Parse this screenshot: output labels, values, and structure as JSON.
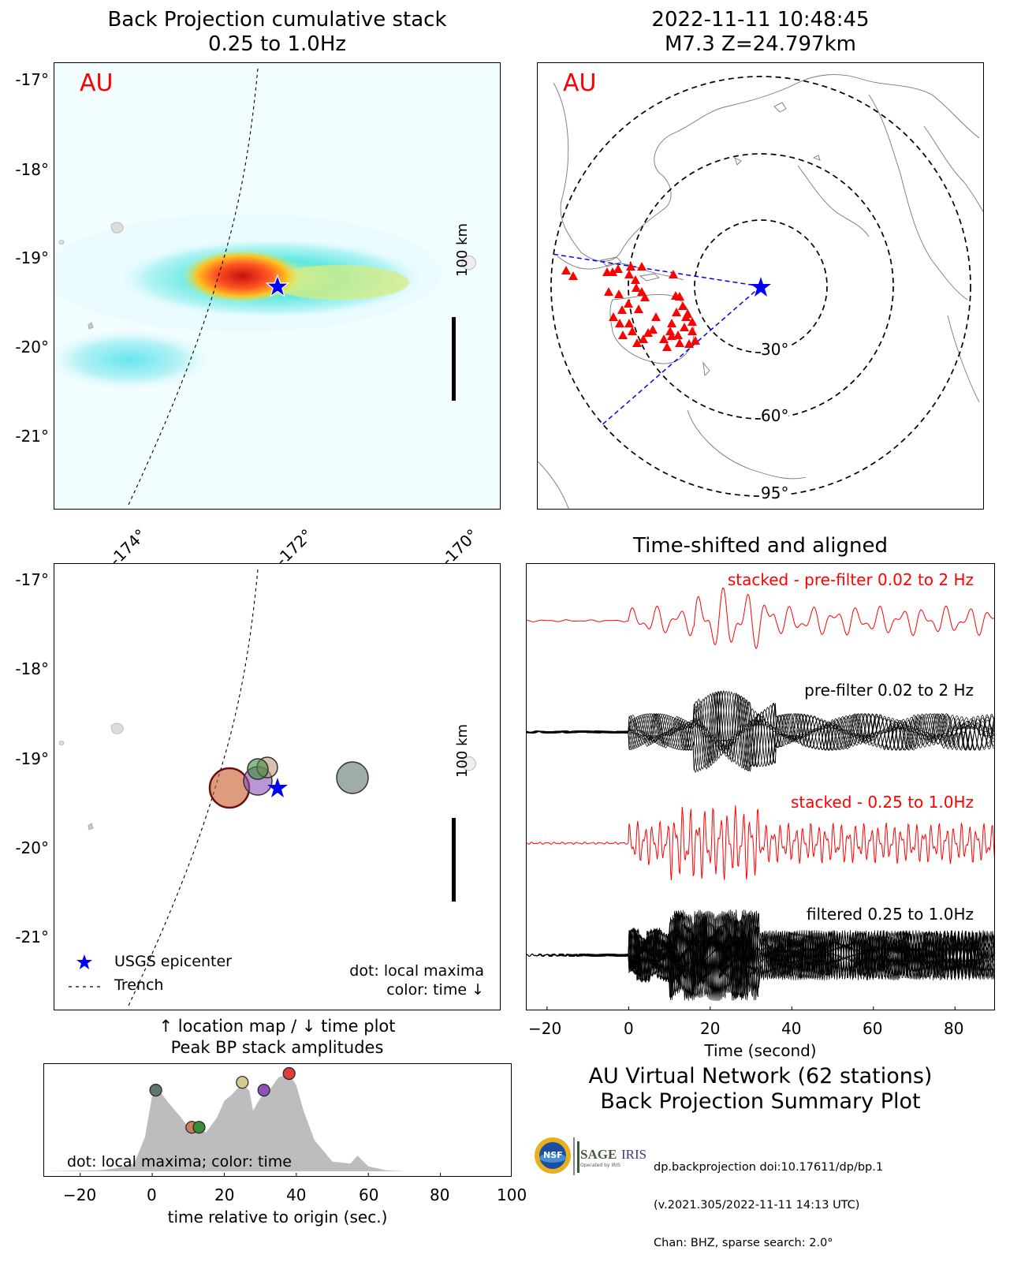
{
  "top_left": {
    "title_line1": "Back Projection cumulative stack",
    "title_line2": "0.25 to 1.0Hz",
    "network_label": "AU",
    "scale_label": "100 km",
    "yticks": [
      "-17°",
      "-18°",
      "-19°",
      "-20°",
      "-21°"
    ],
    "xticks": [
      "-174°",
      "-172°",
      "-170°"
    ]
  },
  "top_right": {
    "title_line1": "2022-11-11 10:48:45",
    "title_line2": "M7.3 Z=24.797km",
    "network_label": "AU",
    "ring_labels": [
      "30°",
      "60°",
      "95°"
    ],
    "colors": {
      "stations": "#ff0000",
      "epicenter": "#0000ff",
      "lines": "#0000ff"
    }
  },
  "mid_left": {
    "scale_label": "100 km",
    "yticks": [
      "-17°",
      "-18°",
      "-19°",
      "-20°",
      "-21°"
    ],
    "legend": {
      "epicenter": "USGS epicenter",
      "trench": "Trench"
    },
    "note_line1": "dot: local maxima",
    "note_line2": "color: time ↓"
  },
  "mid_caption": {
    "line1": "↑ location map / ↓ time plot",
    "line2": "Peak BP stack amplitudes"
  },
  "waveforms": {
    "title": "Time-shifted and aligned",
    "trace_labels": [
      "stacked - pre-filter 0.02 to 2 Hz",
      "pre-filter 0.02 to 2 Hz",
      "stacked - 0.25 to 1.0Hz",
      "filtered 0.25 to 1.0Hz"
    ],
    "trace_colors": [
      "#ff0000",
      "#000000",
      "#ff0000",
      "#000000"
    ],
    "xticks": [
      "−20",
      "0",
      "20",
      "40",
      "60",
      "80"
    ],
    "xlabel": "Time (second)",
    "xlim": [
      -25,
      90
    ]
  },
  "summary": {
    "line1": "AU Virtual Network (62 stations)",
    "line2": "Back Projection Summary Plot",
    "credit_line1": "dp.backprojection doi:10.17611/dp/bp.1",
    "credit_line2": "(v.2021.305/2022-11-11 14:13 UTC)",
    "credit_line3": "Chan: BHZ, sparse search: 2.0°",
    "logo_nsf": "NSF",
    "logo_sage": "SAGE",
    "logo_iris": "IRIS",
    "logo_operated": "Operated by IRIS"
  },
  "chart_data": [
    {
      "type": "area",
      "xlabel": "time relative to origin (sec.)",
      "xlim": [
        -30,
        100
      ],
      "xticks": [
        "−20",
        "0",
        "20",
        "40",
        "60",
        "80",
        "100"
      ],
      "annotation": "dot: local maxima; color: time",
      "x": [
        -30,
        -15,
        -10,
        -5,
        -2,
        0,
        2,
        5,
        8,
        10,
        12,
        15,
        18,
        20,
        22,
        25,
        27,
        28,
        30,
        32,
        35,
        38,
        40,
        42,
        45,
        50,
        55,
        57,
        60,
        65,
        70,
        80,
        100
      ],
      "y": [
        0,
        0.01,
        0.03,
        0.08,
        0.35,
        0.78,
        0.82,
        0.68,
        0.55,
        0.45,
        0.42,
        0.4,
        0.55,
        0.72,
        0.78,
        0.9,
        0.82,
        0.62,
        0.75,
        0.8,
        0.96,
        1.0,
        0.88,
        0.62,
        0.32,
        0.1,
        0.08,
        0.16,
        0.05,
        0.01,
        0,
        0,
        0
      ],
      "maxima": [
        {
          "t": 1,
          "amp": 0.83,
          "color": "#5f7570"
        },
        {
          "t": 11,
          "amp": 0.45,
          "color": "#c58060"
        },
        {
          "t": 13,
          "amp": 0.45,
          "color": "#3c8a3c"
        },
        {
          "t": 25,
          "amp": 0.91,
          "color": "#d4c98e"
        },
        {
          "t": 31,
          "amp": 0.83,
          "color": "#8a52b5"
        },
        {
          "t": 38,
          "amp": 1.0,
          "color": "#e03c3c"
        }
      ]
    }
  ]
}
